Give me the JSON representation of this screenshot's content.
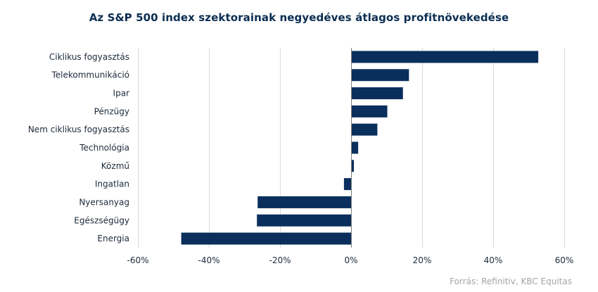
{
  "title": "Az S&P 500 index szektorainak negyedéves átlagos profitnövekedése",
  "source": "Forrás: Refinitiv, KBC Equitas",
  "colors": {
    "bar": "#0b2f5c",
    "grid": "#d9d9d9",
    "axis": "#7f7f7f",
    "title": "#0b2d52",
    "source": "#a4a4a4"
  },
  "chart_data": {
    "type": "bar",
    "orientation": "horizontal",
    "title": "Az S&P 500 index szektorainak negyedéves átlagos profitnövekedése",
    "categories": [
      "Ciklikus fogyasztás",
      "Telekommunikáció",
      "Ipar",
      "Pénzügy",
      "Nem ciklikus fogyasztás",
      "Technológia",
      "Közmű",
      "Ingatlan",
      "Nyersanyag",
      "Egészségügy",
      "Energia"
    ],
    "values": [
      52.7,
      16.3,
      14.6,
      10.2,
      7.4,
      2.0,
      0.8,
      -2.0,
      -26.3,
      -26.5,
      -47.8
    ],
    "xlim": [
      -60,
      60
    ],
    "xticks": [
      -60,
      -40,
      -20,
      0,
      20,
      40,
      60
    ],
    "xtick_labels": [
      "-60%",
      "-40%",
      "-20%",
      "0%",
      "20%",
      "40%",
      "60%"
    ],
    "grid": "vertical",
    "legend": "none",
    "xlabel": "",
    "ylabel": ""
  }
}
